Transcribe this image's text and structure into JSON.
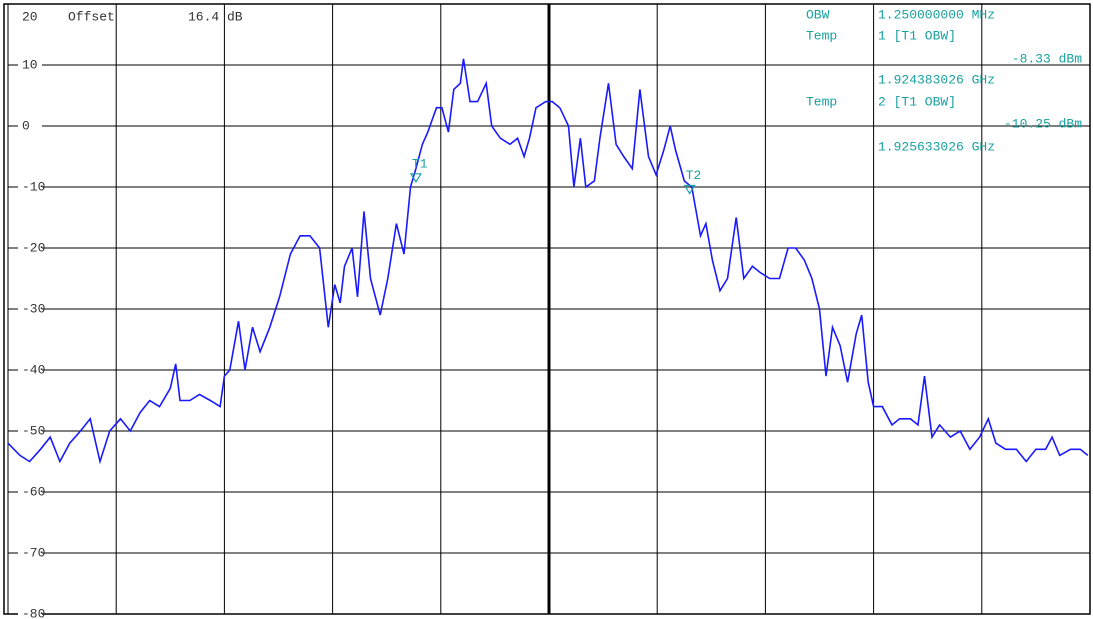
{
  "chart_data": {
    "type": "line",
    "offset_label": "Offset",
    "offset_value": "16.4 dB",
    "ylim": [
      -80,
      20
    ],
    "yticks": [
      20,
      10,
      0,
      -10,
      -20,
      -30,
      -40,
      -50,
      -60,
      -70,
      -80
    ],
    "xlim": [
      0,
      10
    ],
    "xticks": [
      0,
      1,
      2,
      3,
      4,
      5,
      6,
      7,
      8,
      9,
      10
    ],
    "grid": true,
    "series": [
      {
        "color": "#1a1aff",
        "x": [
          0,
          0.11,
          0.2,
          0.3,
          0.39,
          0.48,
          0.57,
          0.67,
          0.76,
          0.85,
          0.94,
          1.04,
          1.13,
          1.22,
          1.31,
          1.4,
          1.5,
          1.55,
          1.59,
          1.68,
          1.77,
          1.87,
          1.96,
          2.0,
          2.05,
          2.13,
          2.19,
          2.26,
          2.33,
          2.42,
          2.51,
          2.61,
          2.7,
          2.79,
          2.88,
          2.96,
          3.02,
          3.07,
          3.11,
          3.18,
          3.23,
          3.29,
          3.35,
          3.44,
          3.51,
          3.59,
          3.66,
          3.72,
          3.77,
          3.83,
          3.88,
          3.96,
          4.01,
          4.07,
          4.12,
          4.18,
          4.21,
          4.27,
          4.34,
          4.42,
          4.47,
          4.55,
          4.64,
          4.71,
          4.77,
          4.82,
          4.88,
          4.97,
          5.03,
          5.1,
          5.18,
          5.23,
          5.29,
          5.34,
          5.42,
          5.47,
          5.55,
          5.62,
          5.69,
          5.77,
          5.84,
          5.92,
          5.99,
          6.06,
          6.12,
          6.17,
          6.25,
          6.32,
          6.4,
          6.45,
          6.51,
          6.58,
          6.65,
          6.73,
          6.8,
          6.88,
          6.95,
          7.04,
          7.13,
          7.21,
          7.28,
          7.36,
          7.43,
          7.5,
          7.56,
          7.62,
          7.69,
          7.76,
          7.84,
          7.89,
          7.95,
          8.0,
          8.08,
          8.17,
          8.24,
          8.34,
          8.41,
          8.47,
          8.54,
          8.61,
          8.71,
          8.8,
          8.89,
          8.98,
          9.06,
          9.13,
          9.22,
          9.32,
          9.41,
          9.5,
          9.59,
          9.65,
          9.72,
          9.82,
          9.91,
          9.98
        ],
        "values": [
          -52,
          -54,
          -55,
          -53,
          -51,
          -55,
          -52,
          -50,
          -48,
          -55,
          -50,
          -48,
          -50,
          -47,
          -45,
          -46,
          -43,
          -39,
          -45,
          -45,
          -44,
          -45,
          -46,
          -41,
          -40,
          -32,
          -40,
          -33,
          -37,
          -33,
          -28,
          -21,
          -18,
          -18,
          -20,
          -33,
          -26,
          -29,
          -23,
          -20,
          -28,
          -14,
          -25,
          -31,
          -25,
          -16,
          -21,
          -10,
          -7,
          -3,
          -1,
          3,
          3,
          -1,
          6,
          7,
          11,
          4,
          4,
          7,
          0,
          -2,
          -3,
          -2,
          -5,
          -2,
          3,
          4,
          4,
          3,
          0,
          -10,
          -2,
          -10,
          -9,
          -2,
          7,
          -3,
          -5,
          -7,
          6,
          -5,
          -8,
          -4,
          0,
          -4,
          -9,
          -10,
          -18,
          -16,
          -22,
          -27,
          -25,
          -15,
          -25,
          -23,
          -24,
          -25,
          -25,
          -20,
          -20,
          -22,
          -25,
          -30,
          -41,
          -33,
          -36,
          -42,
          -34,
          -31,
          -42,
          -46,
          -46,
          -49,
          -48,
          -48,
          -49,
          -41,
          -51,
          -49,
          -51,
          -50,
          -53,
          -51,
          -48,
          -52,
          -53,
          -53,
          -55,
          -53,
          -53,
          -51,
          -54,
          -53,
          -53,
          -54
        ]
      }
    ],
    "markers": [
      {
        "name": "T1",
        "x": 3.77,
        "y": -8.33,
        "color": "#1aa0a0"
      },
      {
        "name": "T2",
        "x": 6.3,
        "y": -10.25,
        "color": "#1aa0a0"
      }
    ],
    "info": {
      "obw_label": "OBW",
      "obw_value": "1.250000000 MHz",
      "temps": [
        {
          "label": "Temp",
          "ref": "1 [T1 OBW]",
          "level": "-8.33 dBm",
          "freq": "1.924383026 GHz"
        },
        {
          "label": "Temp",
          "ref": "2 [T1 OBW]",
          "level": "-10.25 dBm",
          "freq": "1.925633026 GHz"
        }
      ]
    }
  }
}
